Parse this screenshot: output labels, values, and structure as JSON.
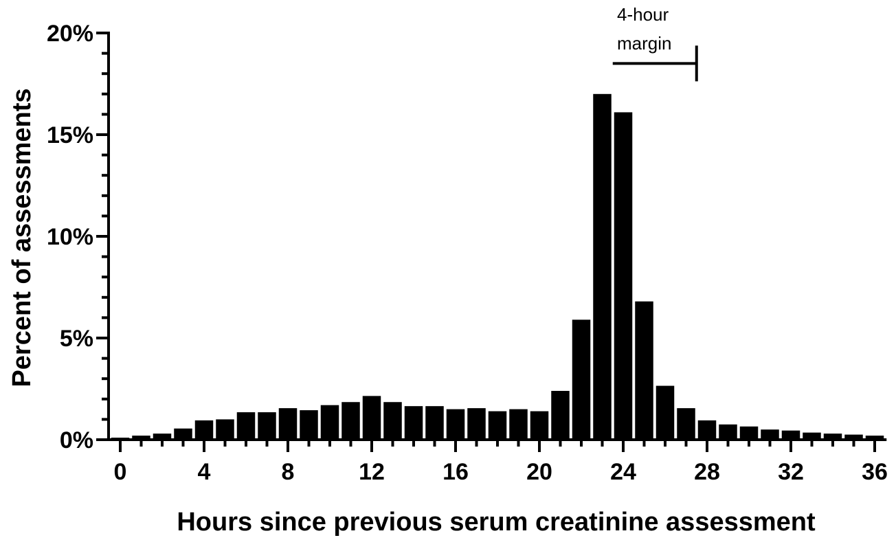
{
  "chart_data": {
    "type": "bar",
    "title": "",
    "xlabel": "Hours since previous serum creatinine assessment",
    "ylabel": "Percent of assessments",
    "x": [
      0,
      1,
      2,
      3,
      4,
      5,
      6,
      7,
      8,
      9,
      10,
      11,
      12,
      13,
      14,
      15,
      16,
      17,
      18,
      19,
      20,
      21,
      22,
      23,
      24,
      25,
      26,
      27,
      28,
      29,
      30,
      31,
      32,
      33,
      34,
      35,
      36
    ],
    "values": [
      0.1,
      0.2,
      0.3,
      0.55,
      0.95,
      1.0,
      1.35,
      1.35,
      1.55,
      1.45,
      1.7,
      1.85,
      2.15,
      1.85,
      1.65,
      1.65,
      1.5,
      1.55,
      1.4,
      1.5,
      1.4,
      2.4,
      5.9,
      17.0,
      16.1,
      6.8,
      2.65,
      1.55,
      0.95,
      0.75,
      0.65,
      0.5,
      0.45,
      0.35,
      0.3,
      0.25,
      0.2
    ],
    "xlim": [
      -0.5,
      36.5
    ],
    "ylim": [
      0,
      20
    ],
    "x_ticks": [
      "0",
      "4",
      "8",
      "12",
      "16",
      "20",
      "24",
      "28",
      "32",
      "36"
    ],
    "y_ticks": [
      "0%",
      "5%",
      "10%",
      "15%",
      "20%"
    ],
    "grid": false,
    "bar_color": "#000000",
    "annotation": {
      "line1": "4-hour",
      "line2": "margin",
      "from_hour": 23.5,
      "to_hour": 27.5,
      "at_percent": 18.5
    }
  }
}
